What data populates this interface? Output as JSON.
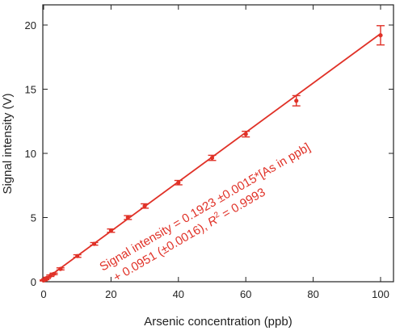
{
  "chart_data": {
    "type": "scatter",
    "xlabel": "Arsenic concentration (ppb)",
    "ylabel": "Signal intensity (V)",
    "xlim": [
      0,
      103
    ],
    "ylim": [
      0,
      21
    ],
    "x_ticks": [
      0,
      20,
      40,
      60,
      80,
      100
    ],
    "y_ticks": [
      0,
      5,
      10,
      15,
      20
    ],
    "grid": false,
    "legend": "none",
    "series": [
      {
        "x": [
          0,
          0.5,
          1,
          2,
          3,
          5,
          10,
          15,
          20,
          25,
          30,
          40,
          50,
          60,
          75,
          100
        ],
        "y": [
          0.1,
          0.19,
          0.3,
          0.47,
          0.61,
          1.0,
          2.0,
          2.95,
          3.98,
          5.0,
          5.9,
          7.72,
          9.65,
          11.5,
          14.1,
          19.2
        ],
        "error": [
          0.04,
          0.04,
          0.05,
          0.06,
          0.06,
          0.08,
          0.1,
          0.1,
          0.13,
          0.15,
          0.17,
          0.17,
          0.2,
          0.22,
          0.4,
          0.75
        ]
      }
    ],
    "fit_line": {
      "slope": 0.1923,
      "intercept": 0.0951,
      "x_range": [
        0,
        100
      ]
    },
    "annotation": {
      "line1_prefix": "Signal intensity = 0.1923 ±0.0015*[As in ppb]",
      "line2_a": "+ 0.0951 (±0.0016), ",
      "line2_r": "R",
      "line2_sup": "2",
      "line2_b": " = 0.9993"
    },
    "colors": {
      "series": "#e03127",
      "axis": "#222222"
    }
  }
}
